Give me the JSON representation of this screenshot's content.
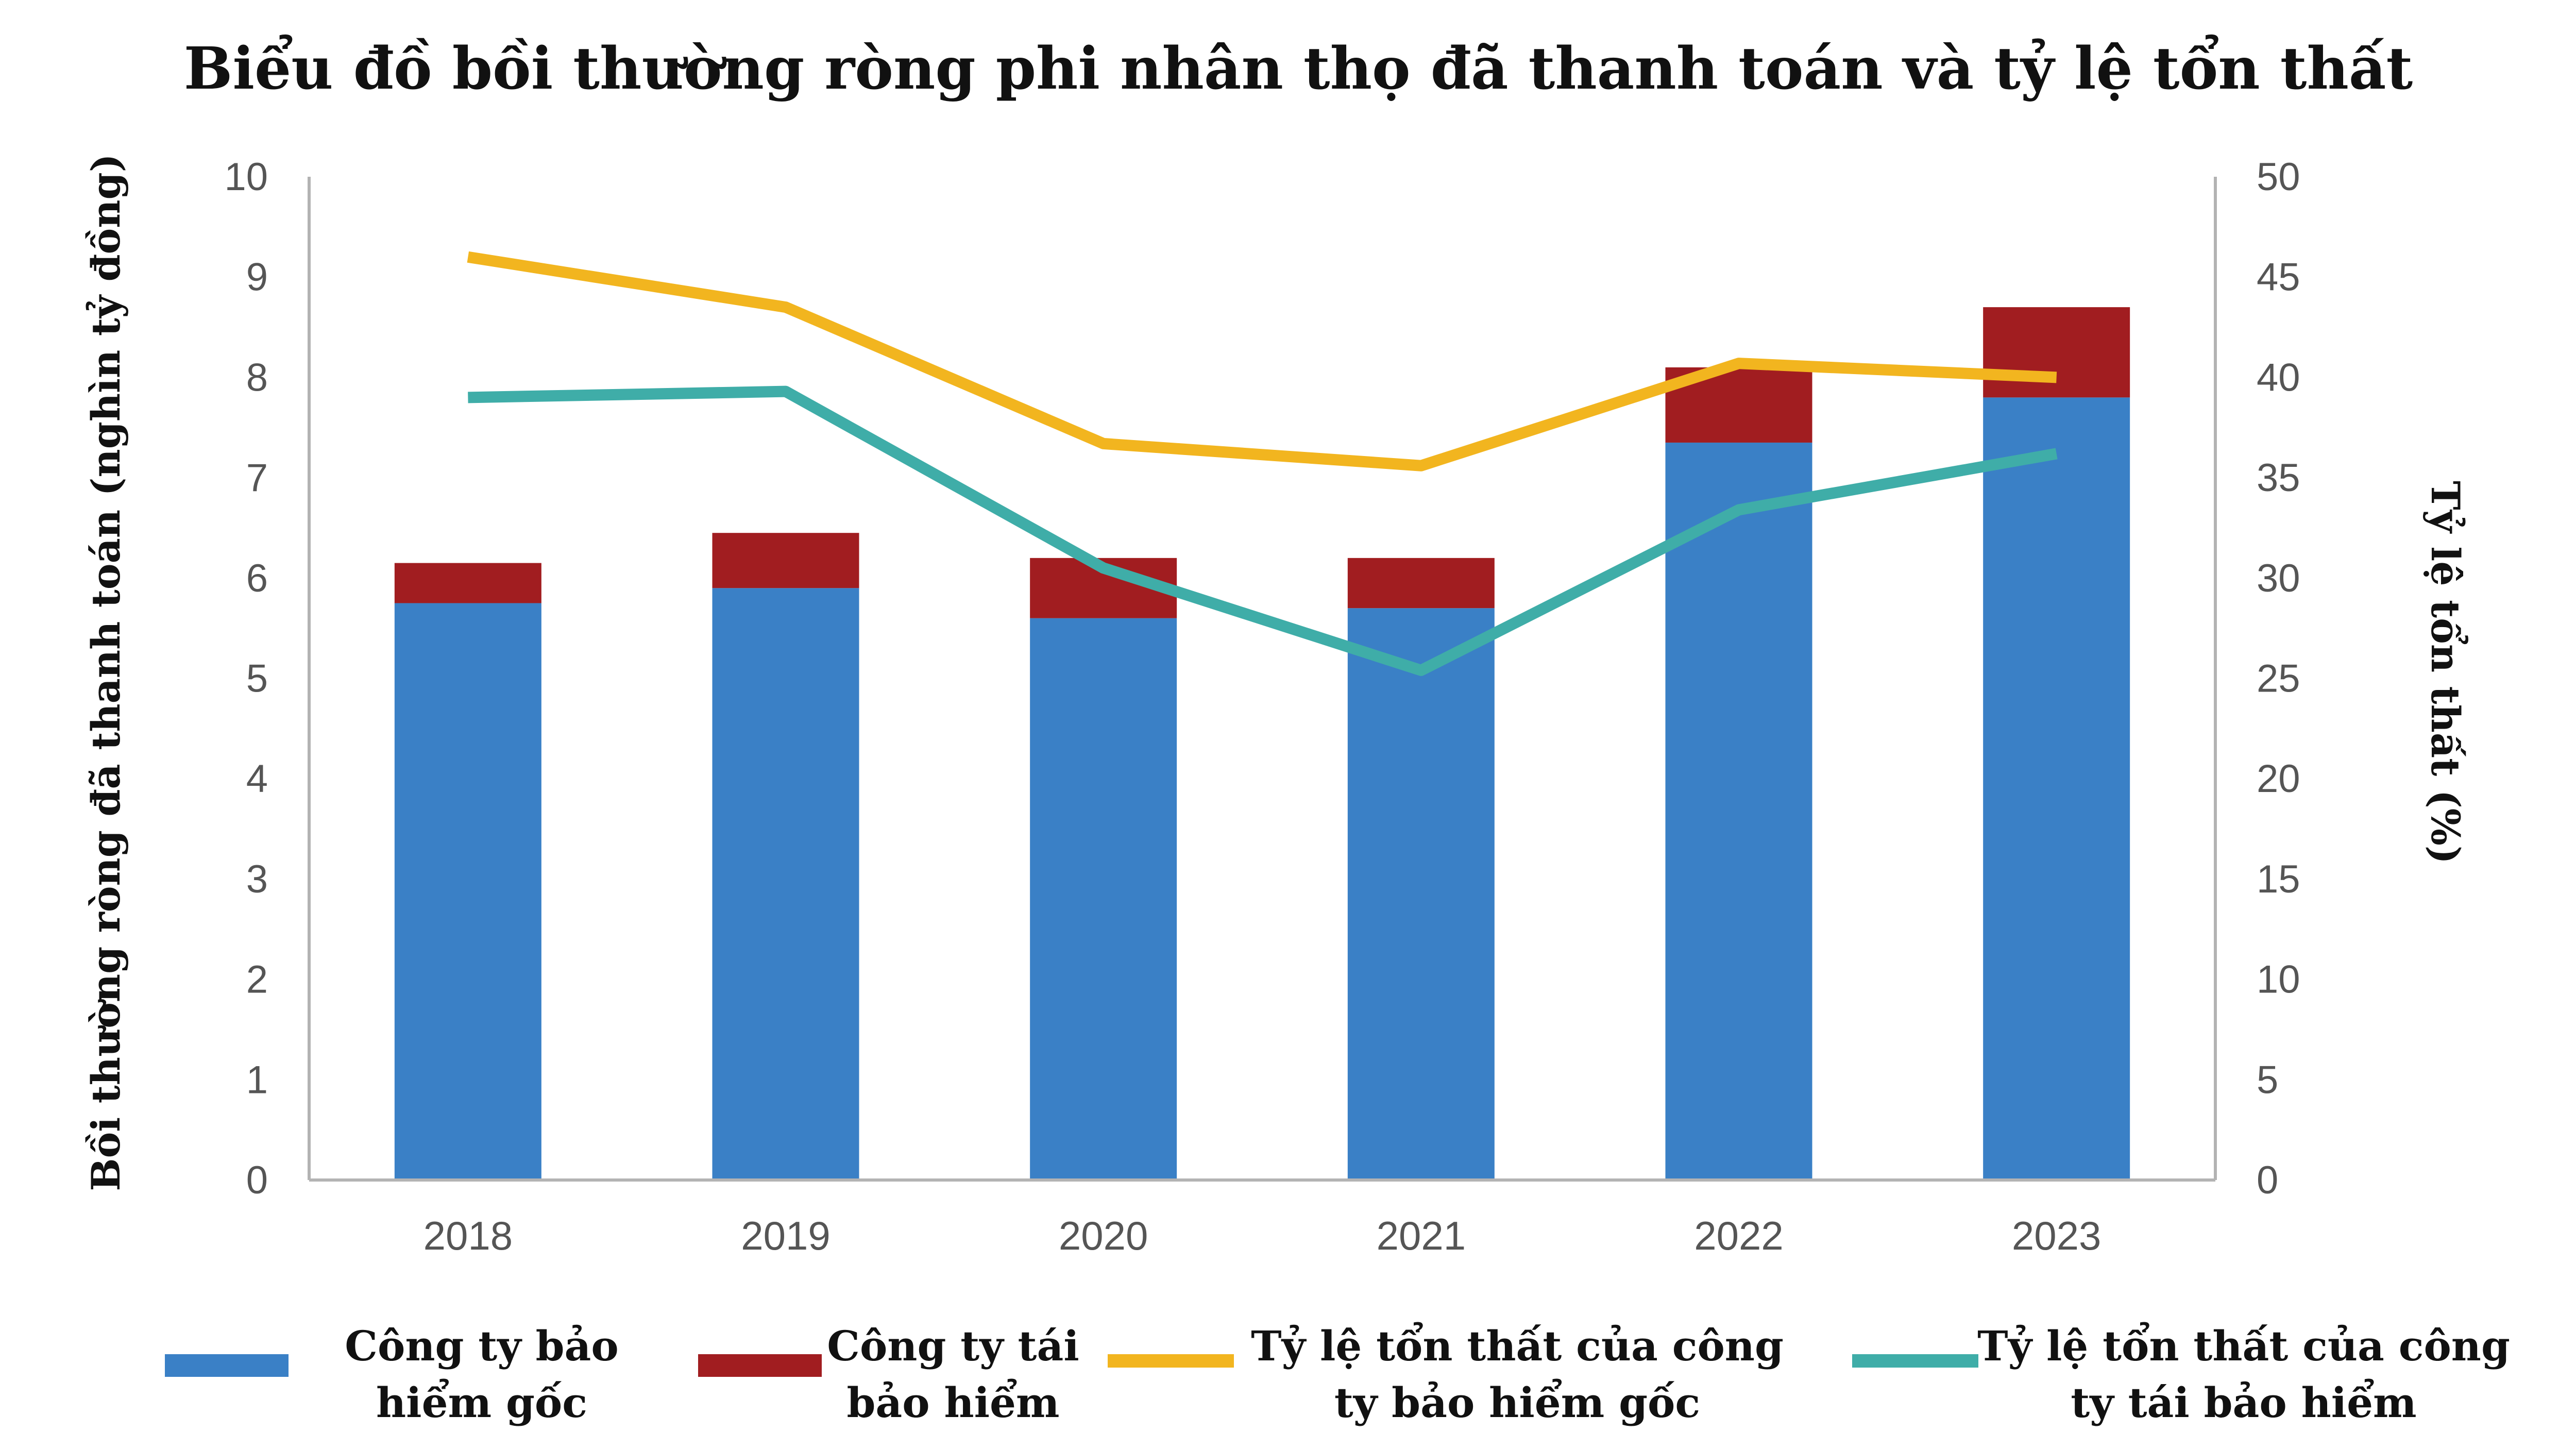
{
  "chart_data": {
    "type": "bar",
    "stacked": true,
    "title": "Biểu đồ bồi thường ròng phi nhân thọ đã thanh toán và tỷ lệ tổn thất",
    "categories": [
      "2018",
      "2019",
      "2020",
      "2021",
      "2022",
      "2023"
    ],
    "ylabel_left": "Bồi thường ròng đã thanh toán (nghìn tỷ đồng)",
    "ylabel_right": "Tỷ lệ tổn thất (%)",
    "ylim_left": [
      0,
      10
    ],
    "ylim_right": [
      0,
      50
    ],
    "yticks_left": [
      "0",
      "1",
      "2",
      "3",
      "4",
      "5",
      "6",
      "7",
      "8",
      "9",
      "10"
    ],
    "yticks_right": [
      "0",
      "5",
      "10",
      "15",
      "20",
      "25",
      "30",
      "35",
      "40",
      "45",
      "50"
    ],
    "bar_series": [
      {
        "name": "Công ty bảo hiểm gốc",
        "color": "#3a80c6",
        "values": [
          5.75,
          5.9,
          5.6,
          5.7,
          7.35,
          7.8
        ]
      },
      {
        "name": "Công ty tái bảo hiểm",
        "color": "#a11d20",
        "values": [
          0.4,
          0.55,
          0.6,
          0.5,
          0.75,
          0.9
        ]
      }
    ],
    "line_series": [
      {
        "name": "Tỷ lệ tổn thất của công ty bảo hiểm gốc",
        "color": "#f2b51f",
        "values": [
          46,
          43.5,
          36.7,
          35.6,
          40.7,
          40
        ]
      },
      {
        "name": "Tỷ lệ tổn thất của công ty tái bảo hiểm",
        "color": "#3fada8",
        "values": [
          39,
          39.3,
          30.5,
          25.4,
          33.4,
          36.2
        ]
      }
    ],
    "legend": {
      "position": "bottom",
      "items": [
        {
          "kind": "bar",
          "color": "#3a80c6",
          "lines": [
            "Công ty bảo",
            "hiểm gốc"
          ]
        },
        {
          "kind": "bar",
          "color": "#a11d20",
          "lines": [
            "Công ty tái",
            "bảo hiểm"
          ]
        },
        {
          "kind": "line",
          "color": "#f2b51f",
          "lines": [
            "Tỷ lệ tổn thất của công",
            "ty bảo hiểm gốc"
          ]
        },
        {
          "kind": "line",
          "color": "#3fada8",
          "lines": [
            "Tỷ lệ tổn thất của công",
            "ty tái bảo hiểm"
          ]
        }
      ]
    }
  }
}
